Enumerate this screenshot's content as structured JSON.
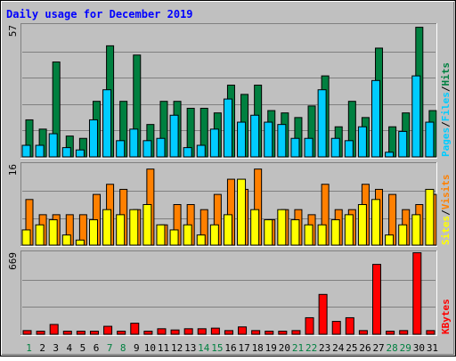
{
  "chart_data": {
    "type": "bar",
    "title": "Daily usage for December 2019",
    "days": [
      "1",
      "2",
      "3",
      "4",
      "5",
      "6",
      "7",
      "8",
      "9",
      "10",
      "11",
      "12",
      "13",
      "14",
      "15",
      "16",
      "17",
      "18",
      "19",
      "20",
      "21",
      "22",
      "23",
      "24",
      "25",
      "26",
      "27",
      "28",
      "29",
      "30",
      "31"
    ],
    "weekend_days": [
      "1",
      "7",
      "8",
      "14",
      "15",
      "21",
      "22",
      "28",
      "29"
    ],
    "panels": [
      {
        "id": "pages-files-hits",
        "ymax_label": "57",
        "ymax": 57,
        "side_label": [
          "Pages",
          "Files",
          "Hits"
        ],
        "series": [
          {
            "name": "Hits",
            "color": "#008040",
            "values": [
              16,
              12,
              41,
              9,
              8,
              24,
              48,
              24,
              44,
              14,
              24,
              24,
              21,
              21,
              19,
              31,
              27,
              31,
              20,
              19,
              17,
              22,
              35,
              13,
              24,
              17,
              47,
              13,
              19,
              56,
              20
            ]
          },
          {
            "name": "Files",
            "color": "#00ccff",
            "values": [
              5,
              5,
              10,
              4,
              3,
              16,
              29,
              7,
              12,
              7,
              8,
              18,
              4,
              5,
              12,
              25,
              15,
              18,
              15,
              14,
              8,
              8,
              29,
              8,
              7,
              13,
              33,
              2,
              11,
              35,
              15
            ]
          },
          {
            "name": "Pages",
            "color": "#00ccff",
            "values": [
              0,
              0,
              0,
              0,
              0,
              0,
              0,
              0,
              0,
              0,
              0,
              0,
              0,
              0,
              0,
              0,
              0,
              0,
              0,
              0,
              0,
              0,
              0,
              0,
              0,
              0,
              0,
              0,
              0,
              0,
              0
            ]
          }
        ]
      },
      {
        "id": "sites-visits",
        "ymax_label": "16",
        "ymax": 16,
        "side_label": [
          "Sites",
          "Visits"
        ],
        "series": [
          {
            "name": "Visits",
            "color": "#ff8000",
            "values": [
              9,
              6,
              6,
              6,
              6,
              10,
              12,
              11,
              7,
              15,
              4,
              8,
              8,
              7,
              10,
              13,
              11,
              15,
              5,
              7,
              7,
              6,
              12,
              7,
              7,
              12,
              11,
              10,
              7,
              8,
              10
            ]
          },
          {
            "name": "Sites",
            "color": "#ffff00",
            "values": [
              3,
              4,
              5,
              2,
              1,
              5,
              7,
              6,
              7,
              8,
              4,
              3,
              4,
              2,
              4,
              6,
              13,
              7,
              5,
              7,
              5,
              4,
              4,
              5,
              6,
              8,
              9,
              2,
              4,
              6,
              11
            ]
          }
        ]
      },
      {
        "id": "kbytes",
        "ymax_label": "669",
        "ymax": 669,
        "side_label": [
          "KBytes"
        ],
        "series": [
          {
            "name": "KBytes",
            "color": "#ff0000",
            "values": [
              30,
              25,
              80,
              25,
              25,
              25,
              65,
              25,
              90,
              25,
              45,
              35,
              45,
              45,
              50,
              30,
              60,
              30,
              25,
              25,
              30,
              135,
              325,
              105,
              135,
              30,
              570,
              25,
              30,
              665,
              30
            ]
          }
        ]
      }
    ]
  },
  "colors": {
    "title": "#0000ff",
    "weekend_day_label": "#008040",
    "weekday_label": "#000000",
    "plot_background": "#c0c0c0",
    "frame_background": "#c0c0c0",
    "gridline": "#808080"
  }
}
